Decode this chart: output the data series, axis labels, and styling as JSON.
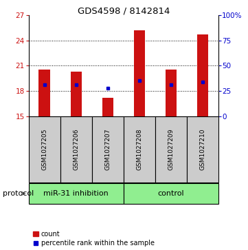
{
  "title": "GDS4598 / 8142814",
  "samples": [
    "GSM1027205",
    "GSM1027206",
    "GSM1027207",
    "GSM1027208",
    "GSM1027209",
    "GSM1027210"
  ],
  "bar_bottoms": [
    15,
    15,
    15,
    15,
    15,
    15
  ],
  "bar_tops": [
    20.5,
    20.3,
    17.2,
    25.2,
    20.5,
    24.7
  ],
  "blue_y": [
    18.7,
    18.75,
    18.35,
    19.25,
    18.75,
    19.1
  ],
  "bar_color": "#cc1111",
  "blue_color": "#0000cc",
  "ylim_left": [
    15,
    27
  ],
  "yticks_left": [
    15,
    18,
    21,
    24,
    27
  ],
  "ylim_right": [
    0,
    100
  ],
  "yticks_right": [
    0,
    25,
    50,
    75,
    100
  ],
  "ytick_labels_right": [
    "0",
    "25",
    "50",
    "75",
    "100%"
  ],
  "group1_label": "miR-31 inhibition",
  "group2_label": "control",
  "group_color": "#90ee90",
  "protocol_label": "protocol",
  "legend_count_label": "count",
  "legend_pct_label": "percentile rank within the sample",
  "bar_width": 0.35,
  "label_color_left": "#cc1111",
  "label_color_right": "#0000cc",
  "sample_box_color": "#cccccc",
  "grid_ticks": [
    18,
    21,
    24
  ]
}
